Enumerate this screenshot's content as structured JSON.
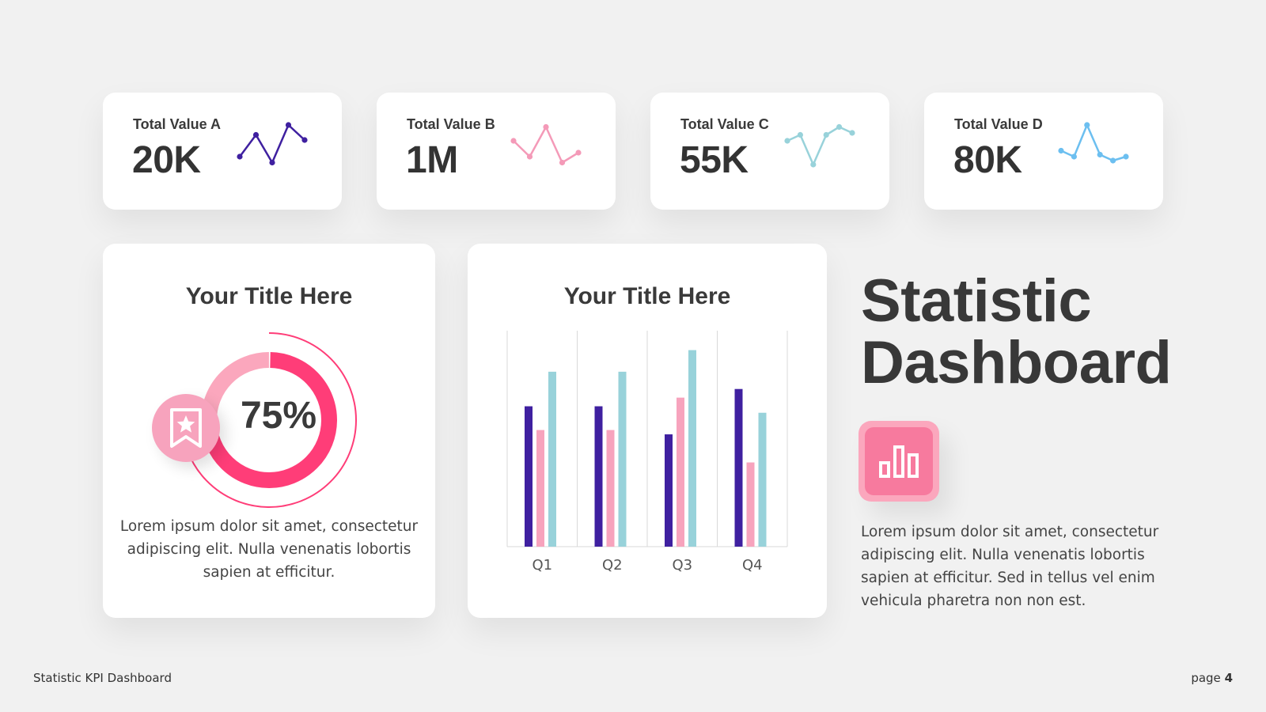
{
  "kpis": [
    {
      "label": "Total Value A",
      "value": "20K",
      "color": "#3f20a0",
      "spark": [
        0.2,
        0.75,
        0.05,
        1.0,
        0.62
      ]
    },
    {
      "label": "Total Value B",
      "value": "1M",
      "color": "#f49ab8",
      "spark": [
        0.6,
        0.2,
        0.95,
        0.05,
        0.3
      ]
    },
    {
      "label": "Total Value C",
      "value": "55K",
      "color": "#98d2da",
      "spark": [
        0.6,
        0.75,
        0.0,
        0.75,
        0.95,
        0.8
      ]
    },
    {
      "label": "Total Value D",
      "value": "80K",
      "color": "#6cbff0",
      "spark": [
        0.35,
        0.2,
        1.0,
        0.25,
        0.1,
        0.2
      ]
    }
  ],
  "donut_panel": {
    "title": "Your Title Here",
    "percent_label": "75%",
    "percent": 75,
    "description": "Lorem ipsum dolor sit amet, consectetur adipiscing elit. Nulla venenatis lobortis sapien at efficitur.",
    "colors": {
      "main": "#ff3d78",
      "secondary": "#fba7bd",
      "badge": "#f7a3bd"
    }
  },
  "bar_panel": {
    "title": "Your Title Here"
  },
  "chart_data": {
    "type": "bar",
    "categories": [
      "Q1",
      "Q2",
      "Q3",
      "Q4"
    ],
    "series": [
      {
        "values": [
          65,
          65,
          52,
          73
        ],
        "color": "#3f20a0"
      },
      {
        "values": [
          54,
          54,
          69,
          39
        ],
        "color": "#f7a3bd"
      },
      {
        "values": [
          81,
          81,
          91,
          62
        ],
        "color": "#98d2da"
      }
    ],
    "ylim": [
      0,
      100
    ],
    "grid": "vertical"
  },
  "hero": {
    "title_line1": "Statistic",
    "title_line2": "Dashboard",
    "description": "Lorem ipsum dolor sit amet, consectetur adipiscing elit. Nulla venenatis lobortis sapien at efficitur. Sed in tellus vel enim vehicula pharetra non non est."
  },
  "footer": {
    "left": "Statistic KPI Dashboard",
    "page_prefix": "page",
    "page_number": "4"
  },
  "icons": {
    "badge": "bookmark-star-icon",
    "chart": "bar-chart-icon"
  }
}
